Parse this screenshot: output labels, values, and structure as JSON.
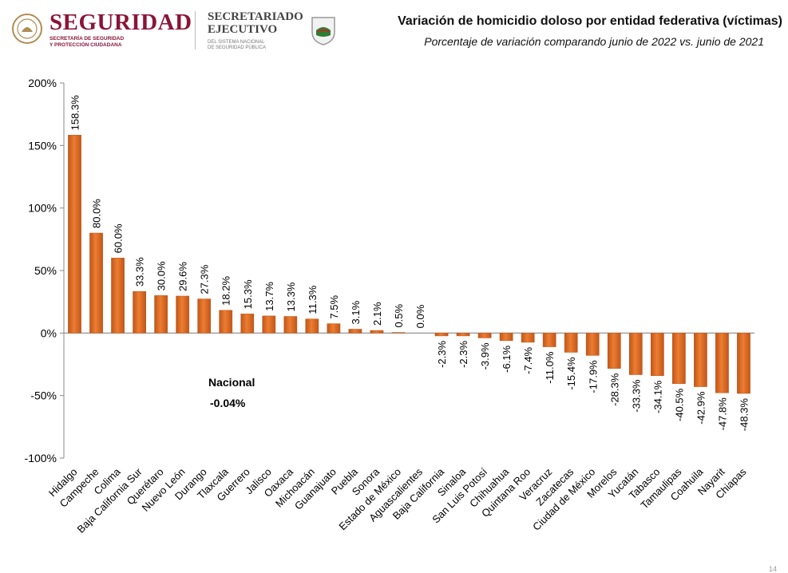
{
  "header": {
    "brand_primary": "SEGURIDAD",
    "brand_primary_sub": [
      "SECRETARÍA DE SEGURIDAD",
      "Y PROTECCIÓN CIUDADANA"
    ],
    "brand_secondary": [
      "SECRETARIADO",
      "EJECUTIVO"
    ],
    "brand_secondary_sub": [
      "DEL SISTEMA NACIONAL",
      "DE SEGURIDAD PÚBLICA"
    ]
  },
  "nacional": {
    "label": "Nacional",
    "value": "-0.04%"
  },
  "page_number": "14",
  "colors": {
    "bar": "#ed7d31",
    "bar_dark": "#c0561a",
    "brand": "#8a1538"
  },
  "chart_data": {
    "type": "bar",
    "title": "Variación de homicidio doloso por entidad federativa (víctimas)",
    "subtitle": "Porcentaje de variación comparando junio de 2022 vs. junio de 2021",
    "categories": [
      "Hidalgo",
      "Campeche",
      "Colima",
      "Baja California Sur",
      "Querétaro",
      "Nuevo León",
      "Durango",
      "Tlaxcala",
      "Guerrero",
      "Jalisco",
      "Oaxaca",
      "Michoacán",
      "Guanajuato",
      "Puebla",
      "Sonora",
      "Estado de México",
      "Aguascalientes",
      "Baja California",
      "Sinaloa",
      "San Luis Potosí",
      "Chihuahua",
      "Quintana Roo",
      "Veracruz",
      "Zacatecas",
      "Ciudad de México",
      "Morelos",
      "Yucatán",
      "Tabasco",
      "Tamaulipas",
      "Coahuila",
      "Nayarit",
      "Chiapas"
    ],
    "values": [
      158.3,
      80.0,
      60.0,
      33.3,
      30.0,
      29.6,
      27.3,
      18.2,
      15.3,
      13.7,
      13.3,
      11.3,
      7.5,
      3.1,
      2.1,
      0.5,
      0.0,
      -2.3,
      -2.3,
      -3.9,
      -6.1,
      -7.4,
      -11.0,
      -15.4,
      -17.9,
      -28.3,
      -33.3,
      -34.1,
      -40.5,
      -42.9,
      -47.8,
      -48.3
    ],
    "labels": [
      "158.3%",
      "80.0%",
      "60.0%",
      "33.3%",
      "30.0%",
      "29.6%",
      "27.3%",
      "18.2%",
      "15.3%",
      "13.7%",
      "13.3%",
      "11.3%",
      "7.5%",
      "3.1%",
      "2.1%",
      "0.5%",
      "0.0%",
      "-2.3%",
      "-2.3%",
      "-3.9%",
      "-6.1%",
      "-7.4%",
      "-11.0%",
      "-15.4%",
      "-17.9%",
      "-28.3%",
      "-33.3%",
      "-34.1%",
      "-40.5%",
      "-42.9%",
      "-47.8%",
      "-48.3%"
    ],
    "ylim": [
      -100,
      200
    ],
    "yticks": [
      -100,
      -50,
      0,
      50,
      100,
      150,
      200
    ],
    "ytick_labels": [
      "-100%",
      "-50%",
      "0%",
      "50%",
      "100%",
      "150%",
      "200%"
    ],
    "xlabel": "",
    "ylabel": "",
    "grid": false,
    "legend": "none"
  }
}
